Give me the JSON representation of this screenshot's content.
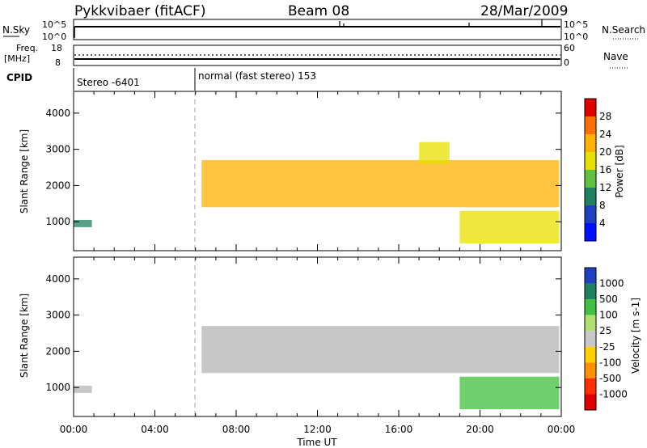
{
  "header": {
    "station": "Pykkvibaer (fitACF)",
    "beam": "Beam 08",
    "date": "28/Mar/2009"
  },
  "strip_panels": {
    "nsky": {
      "label": "N.Sky",
      "ticks": [
        "10^5",
        "10^0"
      ]
    },
    "nsearch": {
      "label": "N.Search",
      "ticks": [
        "10^5",
        "10^0"
      ]
    },
    "freq": {
      "label_line1": "Freq.",
      "label_line2": "[MHz]",
      "ticks": [
        "18",
        "8"
      ]
    },
    "nave": {
      "label": "Nave",
      "ticks": [
        "60",
        "0"
      ]
    },
    "cpid": {
      "label": "CPID",
      "segments": [
        {
          "text": "Stereo -6401",
          "start_hour": 0
        },
        {
          "text": "normal (fast stereo) 153",
          "start_hour": 6
        }
      ]
    }
  },
  "chart_data": [
    {
      "type": "heatmap",
      "panel": "power",
      "ylabel": "Slant Range [km]",
      "xlabel": "",
      "ylim": [
        200,
        4600
      ],
      "xlim": [
        0,
        24
      ],
      "yticks": [
        1000,
        2000,
        3000,
        4000
      ],
      "colorbar": {
        "label": "Power [dB]",
        "levels": [
          {
            "label": "28",
            "color": "#e00000"
          },
          {
            "label": "24",
            "color": "#ff7000"
          },
          {
            "label": "20",
            "color": "#ffb000"
          },
          {
            "label": "16",
            "color": "#e8e000"
          },
          {
            "label": "12",
            "color": "#60c040"
          },
          {
            "label": "8",
            "color": "#208060"
          },
          {
            "label": "4",
            "color": "#2040c0"
          },
          {
            "label": "",
            "color": "#0010ff"
          }
        ]
      },
      "echo_bands": [
        {
          "start_hour": 0.0,
          "end_hour": 0.9,
          "range_low": 850,
          "range_high": 1050,
          "power_db": 8
        },
        {
          "start_hour": 6.3,
          "end_hour": 23.9,
          "range_low": 1400,
          "range_high": 2700,
          "power_db": 20
        },
        {
          "start_hour": 17.0,
          "end_hour": 18.5,
          "range_low": 2600,
          "range_high": 3200,
          "power_db": 16
        },
        {
          "start_hour": 19.0,
          "end_hour": 23.9,
          "range_low": 400,
          "range_high": 1300,
          "power_db": 16
        }
      ]
    },
    {
      "type": "heatmap",
      "panel": "velocity",
      "ylabel": "Slant Range [km]",
      "xlabel": "Time UT",
      "ylim": [
        200,
        4600
      ],
      "xlim": [
        0,
        24
      ],
      "yticks": [
        1000,
        2000,
        3000,
        4000
      ],
      "xtick_labels": [
        "00:00",
        "04:00",
        "08:00",
        "12:00",
        "16:00",
        "20:00",
        "00:00"
      ],
      "xticks": [
        0,
        4,
        8,
        12,
        16,
        20,
        24
      ],
      "colorbar": {
        "label": "Velocity [m s-1]",
        "levels": [
          {
            "label": "1000",
            "color": "#2040c0"
          },
          {
            "label": "500",
            "color": "#208060"
          },
          {
            "label": "100",
            "color": "#40c040"
          },
          {
            "label": "25",
            "color": "#b0e070"
          },
          {
            "label": "-25",
            "color": "#c8c8c8"
          },
          {
            "label": "-100",
            "color": "#ffd000"
          },
          {
            "label": "-500",
            "color": "#ff9000"
          },
          {
            "label": "-1000",
            "color": "#ff3000"
          },
          {
            "label": "",
            "color": "#e00000"
          }
        ]
      },
      "echo_bands": [
        {
          "start_hour": 0.0,
          "end_hour": 0.9,
          "range_low": 850,
          "range_high": 1050,
          "velocity": 0
        },
        {
          "start_hour": 6.3,
          "end_hour": 23.9,
          "range_low": 1400,
          "range_high": 2700,
          "velocity": 0
        },
        {
          "start_hour": 19.0,
          "end_hour": 23.9,
          "range_low": 400,
          "range_high": 1300,
          "velocity": 100
        }
      ]
    }
  ],
  "colors": {
    "ground_scatter": "#b4b4b4",
    "axis": "#000000"
  }
}
